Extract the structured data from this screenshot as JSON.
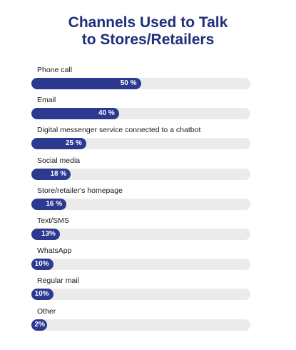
{
  "chart_data": {
    "type": "bar",
    "orientation": "horizontal",
    "title": "Channels Used to Talk to Stores/Retailers",
    "title_lines": [
      "Channels Used to Talk",
      "to Stores/Retailers"
    ],
    "categories": [
      "Phone call",
      "Email",
      "Digital messenger service connected to a chatbot",
      "Social media",
      "Store/retailer's homepage",
      "Text/SMS",
      "WhatsApp",
      "Regular mail",
      "Other"
    ],
    "values": [
      50,
      40,
      25,
      18,
      16,
      13,
      10,
      10,
      2
    ],
    "value_labels": [
      "50 %",
      "40 %",
      "25 %",
      "18 %",
      "16 %",
      "13%",
      "10%",
      "10%",
      "2%"
    ],
    "xlim": [
      0,
      100
    ],
    "grid": false,
    "legend": "none",
    "colors": {
      "bar": "#2b3990",
      "track": "#ebebeb",
      "title": "#1f2f7a",
      "label": "#1a1a1a",
      "value_text": "#ffffff"
    }
  }
}
